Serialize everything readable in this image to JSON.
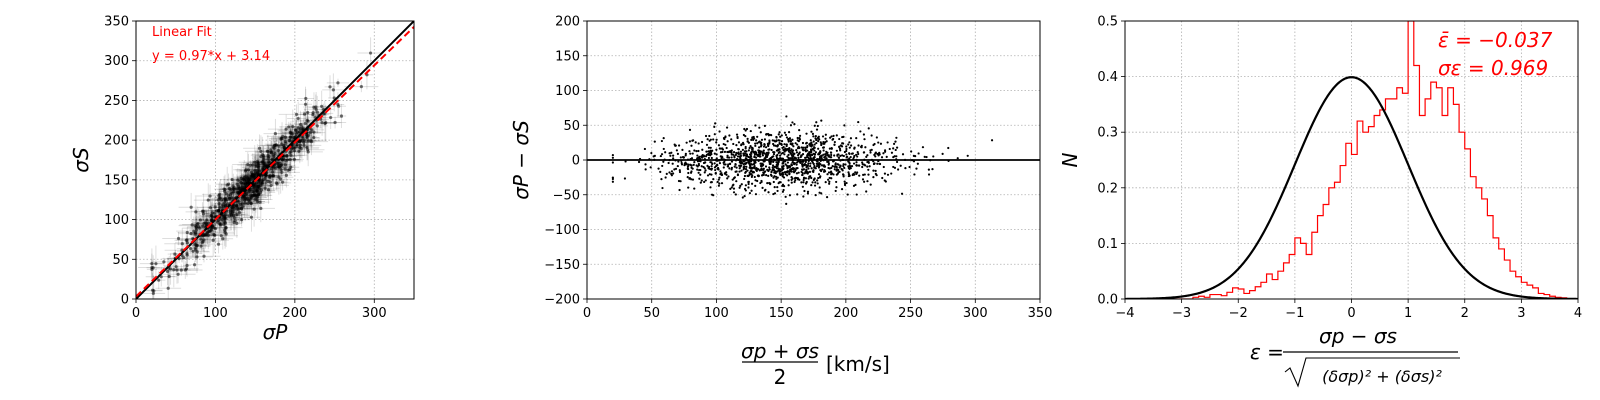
{
  "chart_data": [
    {
      "type": "scatter",
      "xlabel": "σP",
      "ylabel": "σS",
      "xlim": [
        0,
        350
      ],
      "ylim": [
        0,
        350
      ],
      "xticks": [
        "0",
        "100",
        "200",
        "300"
      ],
      "yticks": [
        "0",
        "50",
        "100",
        "150",
        "200",
        "250",
        "300",
        "350"
      ],
      "grid": true,
      "annotation_title": "Linear Fit",
      "annotation_eq": "y = 0.97*x + 3.14",
      "lines": [
        {
          "kind": "identity",
          "color": "#000000",
          "slope": 1.0,
          "intercept": 0.0
        },
        {
          "kind": "linear-fit",
          "color": "#ff0000",
          "style": "dashed",
          "slope": 0.97,
          "intercept": 3.14
        }
      ]
    },
    {
      "type": "scatter",
      "xlabel": "σp + σs",
      "xlabel_denominator": "2",
      "xlabel_unit": "[km/s]",
      "ylabel": "σP − σS",
      "xlim": [
        0,
        350
      ],
      "ylim": [
        -200,
        200
      ],
      "xticks": [
        "0",
        "50",
        "100",
        "150",
        "200",
        "250",
        "300",
        "350"
      ],
      "yticks": [
        "−200",
        "−150",
        "−100",
        "−50",
        "0",
        "50",
        "100",
        "150",
        "200"
      ],
      "grid": true,
      "reference_line_y": 0
    },
    {
      "type": "histogram",
      "xlabel": "ε =",
      "xlabel_numerator": "σp − σs",
      "xlabel_denominator": "(δσp)² + (δσs)²",
      "ylabel": "N",
      "xlim": [
        -4,
        4
      ],
      "ylim": [
        0,
        0.5
      ],
      "xticks": [
        "−4",
        "−3",
        "−2",
        "−1",
        "0",
        "1",
        "2",
        "3",
        "4"
      ],
      "yticks": [
        "0.0",
        "0.1",
        "0.2",
        "0.3",
        "0.4",
        "0.5"
      ],
      "grid": true,
      "mean_label": "ε̄ = −0.037",
      "sigma_label": "σε = 0.969",
      "mean": -0.037,
      "sigma": 0.969,
      "bin_width": 0.1,
      "bins_left_edge": -4.0,
      "bin_values": [
        0,
        0,
        0,
        0,
        0,
        0,
        0,
        0,
        0,
        0,
        0,
        0,
        0.003,
        0.005,
        0.003,
        0.008,
        0.008,
        0.006,
        0.012,
        0.02,
        0.018,
        0.01,
        0.015,
        0.022,
        0.03,
        0.045,
        0.035,
        0.05,
        0.065,
        0.08,
        0.11,
        0.1,
        0.08,
        0.12,
        0.15,
        0.17,
        0.2,
        0.21,
        0.24,
        0.28,
        0.26,
        0.32,
        0.3,
        0.31,
        0.33,
        0.34,
        0.36,
        0.36,
        0.38,
        0.37,
        0.5,
        0.42,
        0.33,
        0.36,
        0.39,
        0.38,
        0.33,
        0.38,
        0.35,
        0.3,
        0.27,
        0.22,
        0.2,
        0.18,
        0.15,
        0.11,
        0.09,
        0.07,
        0.05,
        0.04,
        0.03,
        0.025,
        0.02,
        0.01,
        0.008,
        0.005,
        0.003,
        0.002,
        0,
        0,
        0,
        0,
        0,
        0,
        0,
        0,
        0,
        0,
        0,
        0
      ]
    }
  ]
}
